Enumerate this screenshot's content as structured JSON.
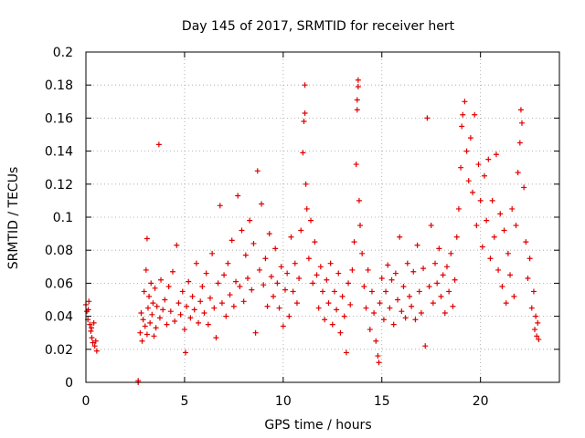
{
  "chart_data": {
    "type": "scatter",
    "title": "Day 145 of 2017, SRMTID for receiver hert",
    "xlabel": "GPS time / hours",
    "ylabel": "SRMTID / TECUs",
    "xlim": [
      0,
      24
    ],
    "ylim": [
      0,
      0.2
    ],
    "xticks": [
      0,
      5,
      10,
      15,
      20
    ],
    "xtick_labels": [
      "0",
      "5",
      "10",
      "15",
      "20"
    ],
    "yticks": [
      0,
      0.02,
      0.04,
      0.06,
      0.08,
      0.1,
      0.12,
      0.14,
      0.16,
      0.18,
      0.2
    ],
    "ytick_labels": [
      "0",
      "0.02",
      "0.04",
      "0.06",
      "0.08",
      "0.1",
      "0.12",
      "0.14",
      "0.16",
      "0.18",
      "0.2"
    ],
    "grid": true,
    "marker": "plus",
    "color": "#e00000",
    "series": [
      {
        "name": "SRMTID",
        "points": [
          [
            0.0,
            0.047
          ],
          [
            0.05,
            0.043
          ],
          [
            0.1,
            0.038
          ],
          [
            0.15,
            0.049
          ],
          [
            0.2,
            0.035
          ],
          [
            0.25,
            0.031
          ],
          [
            0.3,
            0.027
          ],
          [
            0.35,
            0.024
          ],
          [
            0.4,
            0.036
          ],
          [
            0.45,
            0.022
          ],
          [
            0.5,
            0.025
          ],
          [
            0.55,
            0.019
          ],
          [
            0.12,
            0.044
          ],
          [
            0.28,
            0.033
          ],
          [
            2.65,
            0.001
          ],
          [
            2.65,
            0.0
          ],
          [
            2.75,
            0.03
          ],
          [
            2.8,
            0.042
          ],
          [
            2.85,
            0.025
          ],
          [
            2.9,
            0.038
          ],
          [
            2.95,
            0.055
          ],
          [
            3.0,
            0.034
          ],
          [
            3.05,
            0.068
          ],
          [
            3.1,
            0.029
          ],
          [
            3.1,
            0.087
          ],
          [
            3.15,
            0.045
          ],
          [
            3.2,
            0.052
          ],
          [
            3.25,
            0.036
          ],
          [
            3.3,
            0.06
          ],
          [
            3.35,
            0.041
          ],
          [
            3.4,
            0.048
          ],
          [
            3.45,
            0.028
          ],
          [
            3.5,
            0.057
          ],
          [
            3.55,
            0.033
          ],
          [
            3.6,
            0.046
          ],
          [
            3.7,
            0.144
          ],
          [
            3.75,
            0.039
          ],
          [
            3.8,
            0.062
          ],
          [
            3.9,
            0.044
          ],
          [
            4.0,
            0.05
          ],
          [
            4.1,
            0.035
          ],
          [
            4.2,
            0.058
          ],
          [
            4.3,
            0.043
          ],
          [
            4.4,
            0.067
          ],
          [
            4.5,
            0.037
          ],
          [
            4.6,
            0.083
          ],
          [
            4.7,
            0.048
          ],
          [
            4.8,
            0.041
          ],
          [
            4.9,
            0.055
          ],
          [
            5.0,
            0.032
          ],
          [
            5.05,
            0.018
          ],
          [
            5.1,
            0.046
          ],
          [
            5.2,
            0.061
          ],
          [
            5.3,
            0.039
          ],
          [
            5.4,
            0.052
          ],
          [
            5.5,
            0.044
          ],
          [
            5.6,
            0.072
          ],
          [
            5.7,
            0.036
          ],
          [
            5.8,
            0.049
          ],
          [
            5.9,
            0.058
          ],
          [
            6.0,
            0.042
          ],
          [
            6.1,
            0.066
          ],
          [
            6.2,
            0.035
          ],
          [
            6.3,
            0.051
          ],
          [
            6.4,
            0.078
          ],
          [
            6.5,
            0.045
          ],
          [
            6.6,
            0.027
          ],
          [
            6.7,
            0.06
          ],
          [
            6.8,
            0.107
          ],
          [
            6.9,
            0.048
          ],
          [
            7.0,
            0.065
          ],
          [
            7.1,
            0.04
          ],
          [
            7.2,
            0.072
          ],
          [
            7.3,
            0.053
          ],
          [
            7.4,
            0.086
          ],
          [
            7.5,
            0.046
          ],
          [
            7.6,
            0.061
          ],
          [
            7.7,
            0.113
          ],
          [
            7.8,
            0.058
          ],
          [
            7.9,
            0.092
          ],
          [
            8.0,
            0.049
          ],
          [
            8.1,
            0.077
          ],
          [
            8.2,
            0.063
          ],
          [
            8.3,
            0.098
          ],
          [
            8.4,
            0.056
          ],
          [
            8.5,
            0.084
          ],
          [
            8.6,
            0.03
          ],
          [
            8.7,
            0.128
          ],
          [
            8.8,
            0.068
          ],
          [
            8.9,
            0.108
          ],
          [
            9.0,
            0.059
          ],
          [
            9.1,
            0.075
          ],
          [
            9.2,
            0.046
          ],
          [
            9.3,
            0.09
          ],
          [
            9.4,
            0.064
          ],
          [
            9.5,
            0.052
          ],
          [
            9.6,
            0.081
          ],
          [
            9.7,
            0.06
          ],
          [
            9.8,
            0.045
          ],
          [
            9.9,
            0.07
          ],
          [
            10.0,
            0.034
          ],
          [
            10.1,
            0.056
          ],
          [
            10.2,
            0.066
          ],
          [
            10.3,
            0.04
          ],
          [
            10.4,
            0.088
          ],
          [
            10.5,
            0.055
          ],
          [
            10.6,
            0.072
          ],
          [
            10.7,
            0.048
          ],
          [
            10.8,
            0.063
          ],
          [
            10.9,
            0.092
          ],
          [
            11.0,
            0.139
          ],
          [
            11.05,
            0.158
          ],
          [
            11.1,
            0.163
          ],
          [
            11.1,
            0.18
          ],
          [
            11.15,
            0.12
          ],
          [
            11.2,
            0.105
          ],
          [
            11.3,
            0.075
          ],
          [
            11.4,
            0.098
          ],
          [
            11.5,
            0.06
          ],
          [
            11.6,
            0.085
          ],
          [
            11.7,
            0.065
          ],
          [
            11.8,
            0.045
          ],
          [
            11.9,
            0.07
          ],
          [
            12.0,
            0.055
          ],
          [
            12.1,
            0.038
          ],
          [
            12.2,
            0.062
          ],
          [
            12.3,
            0.048
          ],
          [
            12.4,
            0.072
          ],
          [
            12.5,
            0.035
          ],
          [
            12.6,
            0.055
          ],
          [
            12.7,
            0.044
          ],
          [
            12.8,
            0.066
          ],
          [
            12.9,
            0.03
          ],
          [
            13.0,
            0.052
          ],
          [
            13.1,
            0.04
          ],
          [
            13.2,
            0.018
          ],
          [
            13.3,
            0.06
          ],
          [
            13.4,
            0.047
          ],
          [
            13.5,
            0.068
          ],
          [
            13.6,
            0.085
          ],
          [
            13.7,
            0.132
          ],
          [
            13.75,
            0.165
          ],
          [
            13.75,
            0.171
          ],
          [
            13.8,
            0.183
          ],
          [
            13.8,
            0.179
          ],
          [
            13.85,
            0.11
          ],
          [
            13.9,
            0.095
          ],
          [
            14.0,
            0.078
          ],
          [
            14.1,
            0.058
          ],
          [
            14.2,
            0.045
          ],
          [
            14.3,
            0.068
          ],
          [
            14.4,
            0.032
          ],
          [
            14.5,
            0.055
          ],
          [
            14.6,
            0.042
          ],
          [
            14.7,
            0.025
          ],
          [
            14.8,
            0.016
          ],
          [
            14.85,
            0.012
          ],
          [
            14.9,
            0.048
          ],
          [
            15.0,
            0.063
          ],
          [
            15.1,
            0.038
          ],
          [
            15.2,
            0.055
          ],
          [
            15.3,
            0.071
          ],
          [
            15.4,
            0.045
          ],
          [
            15.5,
            0.062
          ],
          [
            15.6,
            0.035
          ],
          [
            15.7,
            0.066
          ],
          [
            15.8,
            0.05
          ],
          [
            15.9,
            0.088
          ],
          [
            16.0,
            0.043
          ],
          [
            16.1,
            0.058
          ],
          [
            16.2,
            0.039
          ],
          [
            16.3,
            0.072
          ],
          [
            16.4,
            0.052
          ],
          [
            16.5,
            0.046
          ],
          [
            16.6,
            0.067
          ],
          [
            16.7,
            0.038
          ],
          [
            16.8,
            0.083
          ],
          [
            16.9,
            0.055
          ],
          [
            17.0,
            0.042
          ],
          [
            17.1,
            0.069
          ],
          [
            17.2,
            0.022
          ],
          [
            17.3,
            0.16
          ],
          [
            17.4,
            0.058
          ],
          [
            17.5,
            0.095
          ],
          [
            17.6,
            0.048
          ],
          [
            17.7,
            0.072
          ],
          [
            17.8,
            0.06
          ],
          [
            17.9,
            0.081
          ],
          [
            18.0,
            0.052
          ],
          [
            18.1,
            0.065
          ],
          [
            18.2,
            0.042
          ],
          [
            18.3,
            0.07
          ],
          [
            18.4,
            0.055
          ],
          [
            18.5,
            0.078
          ],
          [
            18.6,
            0.046
          ],
          [
            18.7,
            0.062
          ],
          [
            18.8,
            0.088
          ],
          [
            18.9,
            0.105
          ],
          [
            19.0,
            0.13
          ],
          [
            19.05,
            0.155
          ],
          [
            19.1,
            0.162
          ],
          [
            19.2,
            0.17
          ],
          [
            19.3,
            0.14
          ],
          [
            19.4,
            0.122
          ],
          [
            19.5,
            0.148
          ],
          [
            19.6,
            0.115
          ],
          [
            19.7,
            0.162
          ],
          [
            19.8,
            0.095
          ],
          [
            19.9,
            0.132
          ],
          [
            20.0,
            0.11
          ],
          [
            20.1,
            0.082
          ],
          [
            20.2,
            0.125
          ],
          [
            20.3,
            0.098
          ],
          [
            20.4,
            0.135
          ],
          [
            20.5,
            0.075
          ],
          [
            20.6,
            0.11
          ],
          [
            20.7,
            0.088
          ],
          [
            20.8,
            0.138
          ],
          [
            20.9,
            0.068
          ],
          [
            21.0,
            0.102
          ],
          [
            21.1,
            0.058
          ],
          [
            21.2,
            0.092
          ],
          [
            21.3,
            0.048
          ],
          [
            21.4,
            0.078
          ],
          [
            21.5,
            0.065
          ],
          [
            21.6,
            0.105
          ],
          [
            21.7,
            0.052
          ],
          [
            21.8,
            0.095
          ],
          [
            21.9,
            0.127
          ],
          [
            22.0,
            0.145
          ],
          [
            22.05,
            0.165
          ],
          [
            22.1,
            0.157
          ],
          [
            22.2,
            0.118
          ],
          [
            22.3,
            0.085
          ],
          [
            22.4,
            0.063
          ],
          [
            22.5,
            0.075
          ],
          [
            22.6,
            0.045
          ],
          [
            22.7,
            0.055
          ],
          [
            22.75,
            0.032
          ],
          [
            22.8,
            0.04
          ],
          [
            22.85,
            0.028
          ],
          [
            22.9,
            0.036
          ],
          [
            22.95,
            0.026
          ]
        ]
      }
    ]
  }
}
